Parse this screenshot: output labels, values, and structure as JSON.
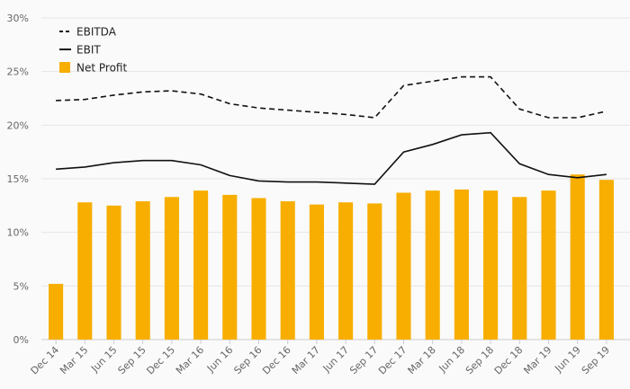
{
  "chart_data": {
    "type": "bar",
    "categories": [
      "Dec 14",
      "Mar 15",
      "Jun 15",
      "Sep 15",
      "Dec 15",
      "Mar 16",
      "Jun 16",
      "Sep 16",
      "Dec 16",
      "Mar 17",
      "Jun 17",
      "Sep 17",
      "Dec 17",
      "Mar 18",
      "Jun 18",
      "Sep 18",
      "Dec 18",
      "Mar 19",
      "Jun 19",
      "Sep 19"
    ],
    "y_ticks": [
      "0%",
      "5%",
      "10%",
      "15%",
      "20%",
      "25%",
      "30%"
    ],
    "ylim": [
      0,
      30
    ],
    "y_unit": "%",
    "grid": true,
    "legend_position": "top-left",
    "series": [
      {
        "name": "EBITDA",
        "kind": "line",
        "style": "dashed",
        "color": "#111111",
        "values": [
          22.3,
          22.4,
          22.8,
          23.1,
          23.2,
          22.9,
          22.0,
          21.6,
          21.4,
          21.2,
          21.0,
          20.7,
          23.7,
          24.1,
          24.5,
          24.5,
          21.5,
          20.7,
          20.7,
          21.3
        ]
      },
      {
        "name": "EBIT",
        "kind": "line",
        "style": "solid",
        "color": "#111111",
        "values": [
          15.9,
          16.1,
          16.5,
          16.7,
          16.7,
          16.3,
          15.3,
          14.8,
          14.7,
          14.7,
          14.6,
          14.5,
          17.5,
          18.2,
          19.1,
          19.3,
          16.4,
          15.4,
          15.1,
          15.4
        ]
      },
      {
        "name": "Net Profit",
        "kind": "bar",
        "color": "#f7ae00",
        "values": [
          5.2,
          12.8,
          12.5,
          12.9,
          13.3,
          13.9,
          13.5,
          13.2,
          12.9,
          12.6,
          12.8,
          12.7,
          13.7,
          13.9,
          14.0,
          13.9,
          13.3,
          13.9,
          15.4,
          14.9
        ]
      }
    ]
  }
}
